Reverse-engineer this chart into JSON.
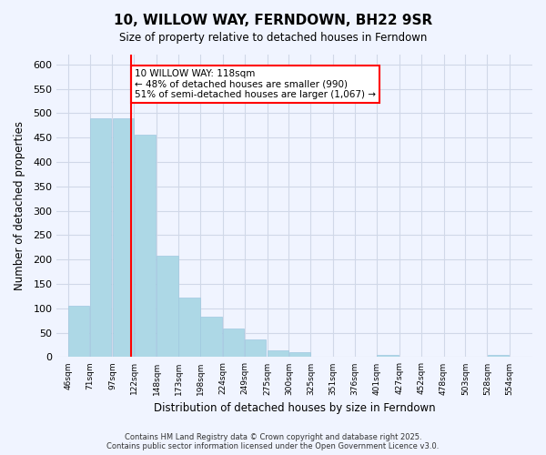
{
  "title": "10, WILLOW WAY, FERNDOWN, BH22 9SR",
  "subtitle": "Size of property relative to detached houses in Ferndown",
  "xlabel": "Distribution of detached houses by size in Ferndown",
  "ylabel": "Number of detached properties",
  "bar_left_edges": [
    46,
    71,
    97,
    122,
    148,
    173,
    198,
    224,
    249,
    275,
    300,
    325,
    351,
    376,
    401,
    427,
    452,
    478,
    503,
    528
  ],
  "bar_heights": [
    105,
    490,
    490,
    455,
    208,
    122,
    82,
    58,
    36,
    14,
    10,
    0,
    0,
    0,
    4,
    0,
    0,
    0,
    0,
    5
  ],
  "bin_width": 25,
  "bar_color": "#add8e6",
  "bar_edge_color": "#a0c8e0",
  "vline_x": 118,
  "vline_color": "red",
  "annotation_title": "10 WILLOW WAY: 118sqm",
  "annotation_line1": "← 48% of detached houses are smaller (990)",
  "annotation_line2": "51% of semi-detached houses are larger (1,067) →",
  "annotation_box_color": "white",
  "annotation_box_edge": "red",
  "xtick_labels": [
    "46sqm",
    "71sqm",
    "97sqm",
    "122sqm",
    "148sqm",
    "173sqm",
    "198sqm",
    "224sqm",
    "249sqm",
    "275sqm",
    "300sqm",
    "325sqm",
    "351sqm",
    "376sqm",
    "401sqm",
    "427sqm",
    "452sqm",
    "478sqm",
    "503sqm",
    "528sqm",
    "554sqm"
  ],
  "xtick_positions": [
    46,
    71,
    97,
    122,
    148,
    173,
    198,
    224,
    249,
    275,
    300,
    325,
    351,
    376,
    401,
    427,
    452,
    478,
    503,
    528,
    554
  ],
  "ylim": [
    0,
    620
  ],
  "xlim": [
    33,
    580
  ],
  "ytick_step": 50,
  "grid_color": "#d0d8e8",
  "footer_line1": "Contains HM Land Registry data © Crown copyright and database right 2025.",
  "footer_line2": "Contains public sector information licensed under the Open Government Licence v3.0.",
  "bg_color": "#f0f4ff"
}
